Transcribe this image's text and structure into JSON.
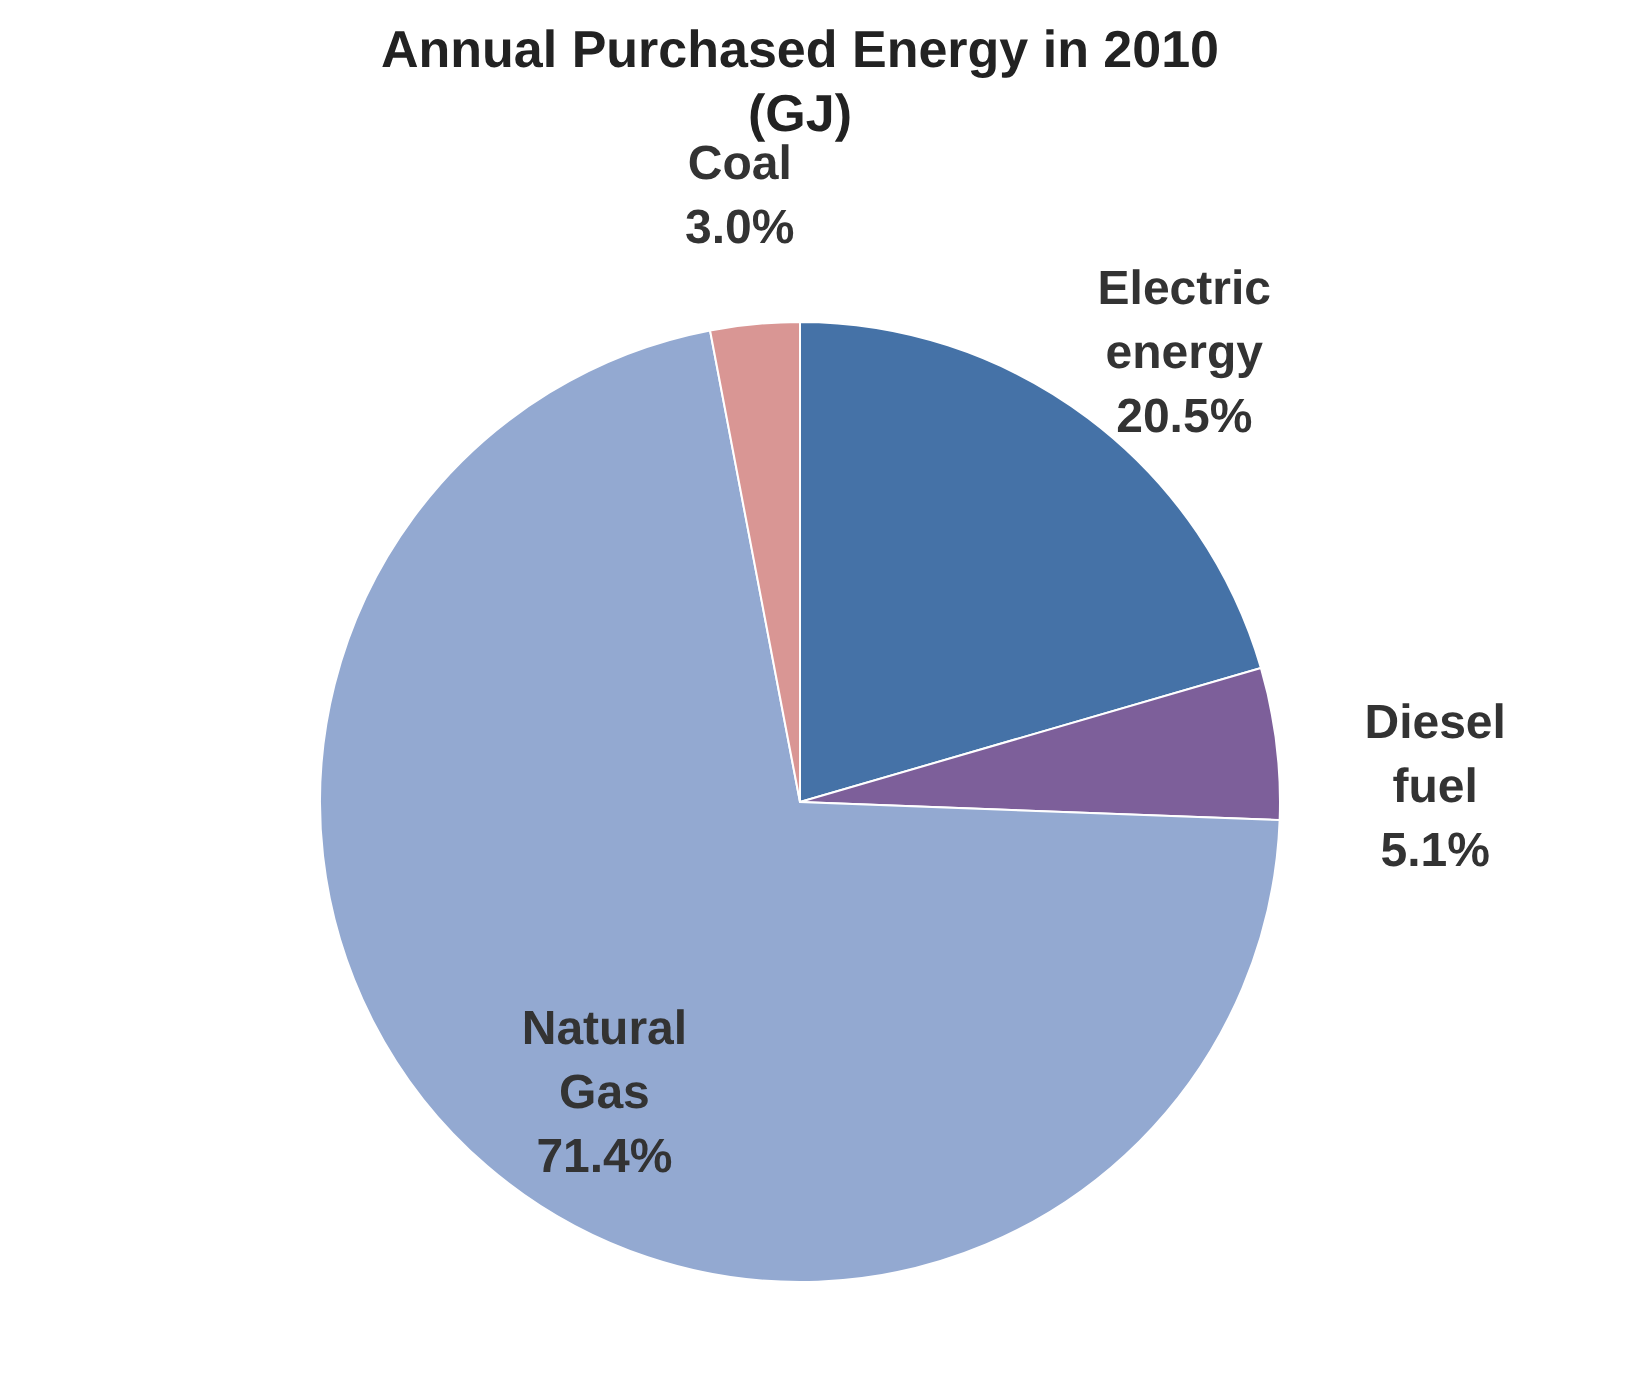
{
  "chart_data": {
    "type": "pie",
    "title": "Annual Purchased Energy in 2010 (GJ)",
    "categories": [
      "Electric energy",
      "Diesel fuel",
      "Natural Gas",
      "Coal"
    ],
    "values": [
      20.5,
      5.1,
      71.4,
      3.0
    ],
    "colors": [
      "#4572a7",
      "#7d5f9a",
      "#93a9d1",
      "#d99694"
    ],
    "value_labels": [
      "20.5%",
      "5.1%",
      "71.4%",
      "3.0%"
    ],
    "legend": false
  }
}
